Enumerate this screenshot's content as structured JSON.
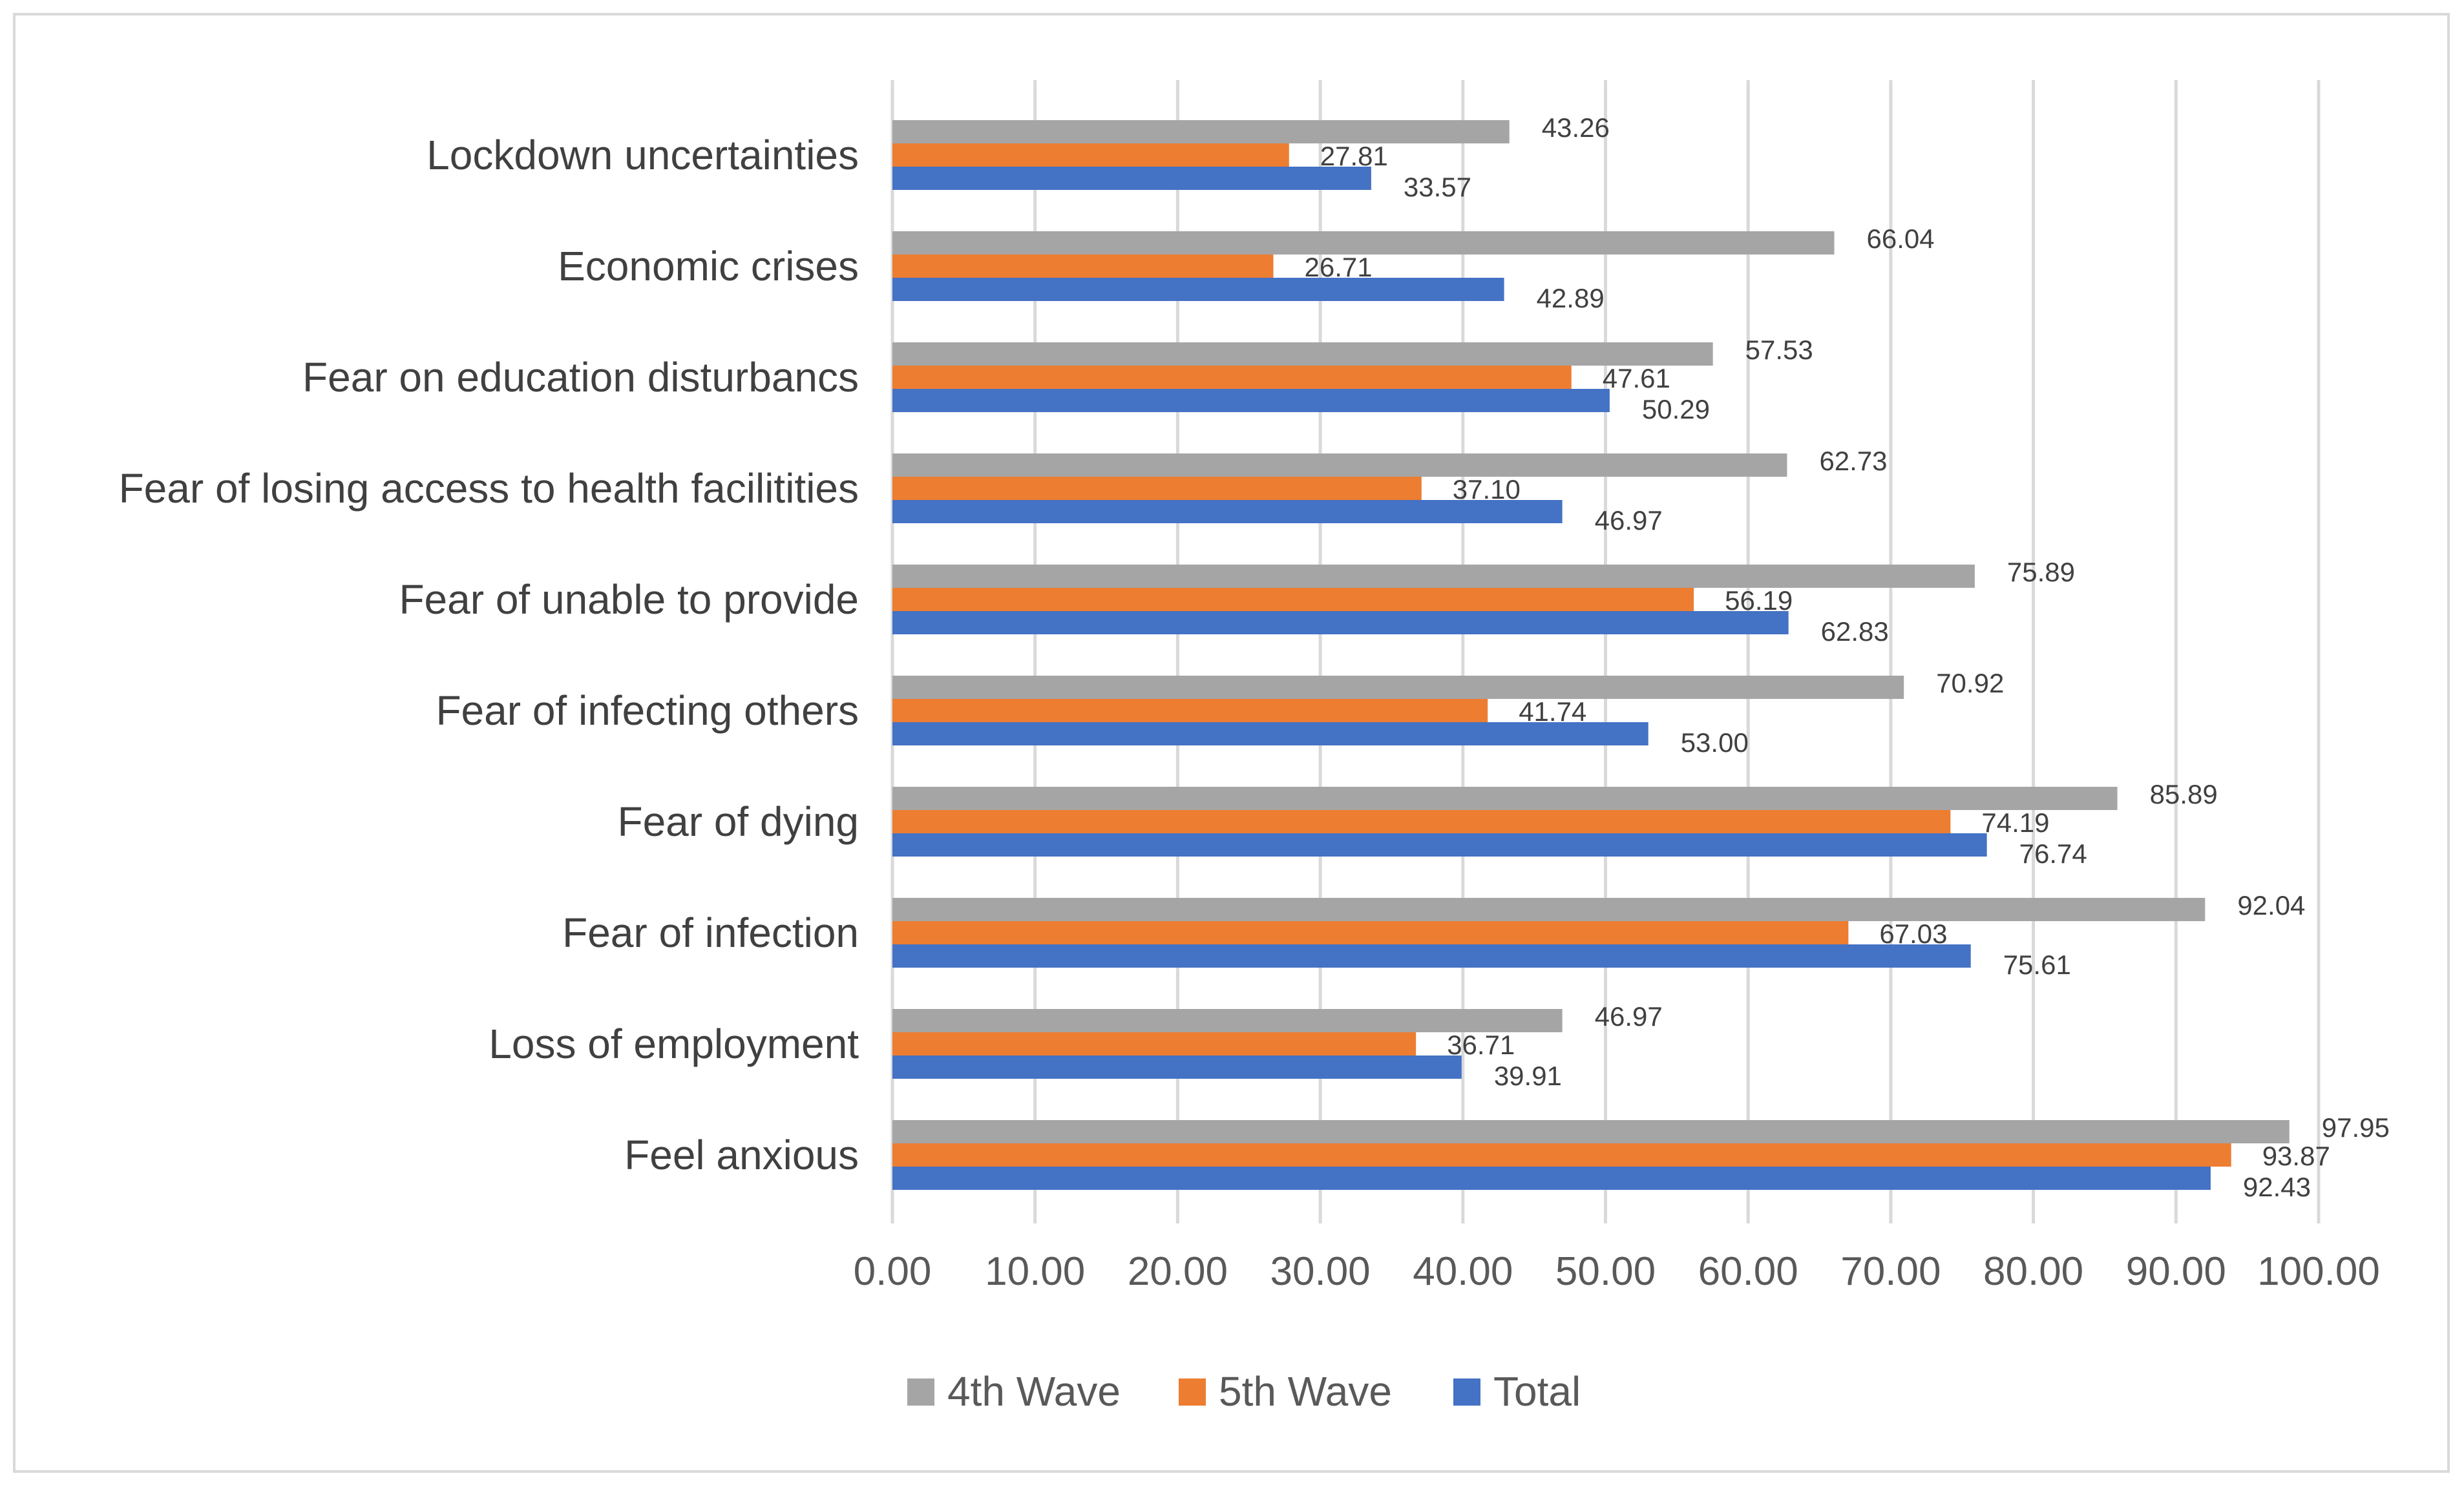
{
  "chart_data": {
    "type": "bar",
    "orientation": "horizontal",
    "title": "",
    "xlabel": "",
    "ylabel": "",
    "xlim": [
      0,
      100
    ],
    "grid": true,
    "legend_position": "bottom",
    "categories": [
      "Lockdown uncertainties",
      "Economic crises",
      "Fear on education disturbancs",
      "Fear of losing access to health facilitities",
      "Fear of unable to provide",
      "Fear of infecting others",
      "Fear of dying",
      "Fear of infection",
      "Loss of employment",
      "Feel anxious"
    ],
    "x_ticks": [
      "0.00",
      "10.00",
      "20.00",
      "30.00",
      "40.00",
      "50.00",
      "60.00",
      "70.00",
      "80.00",
      "90.00",
      "100.00"
    ],
    "series": [
      {
        "name": "4th Wave",
        "color": "#a5a5a5",
        "values": [
          43.26,
          66.04,
          57.53,
          62.73,
          75.89,
          70.92,
          85.89,
          92.04,
          46.97,
          97.95
        ],
        "labels": [
          "43.26",
          "66.04",
          "57.53",
          "62.73",
          "75.89",
          "70.92",
          "85.89",
          "92.04",
          "46.97",
          "97.95"
        ]
      },
      {
        "name": "5th Wave",
        "color": "#ed7d31",
        "values": [
          27.81,
          26.71,
          47.61,
          37.1,
          56.19,
          41.74,
          74.19,
          67.03,
          36.71,
          93.87
        ],
        "labels": [
          "27.81",
          "26.71",
          "47.61",
          "37.10",
          "56.19",
          "41.74",
          "74.19",
          "67.03",
          "36.71",
          "93.87"
        ]
      },
      {
        "name": "Total",
        "color": "#4472c4",
        "values": [
          33.57,
          42.89,
          50.29,
          46.97,
          62.83,
          53.0,
          76.74,
          75.61,
          39.91,
          92.43
        ],
        "labels": [
          "33.57",
          "42.89",
          "50.29",
          "46.97",
          "62.83",
          "53.00",
          "76.74",
          "75.61",
          "39.91",
          "92.43"
        ]
      }
    ]
  },
  "colors": {
    "gridline": "#d9d9d9",
    "frame": "#d9d9d9"
  }
}
